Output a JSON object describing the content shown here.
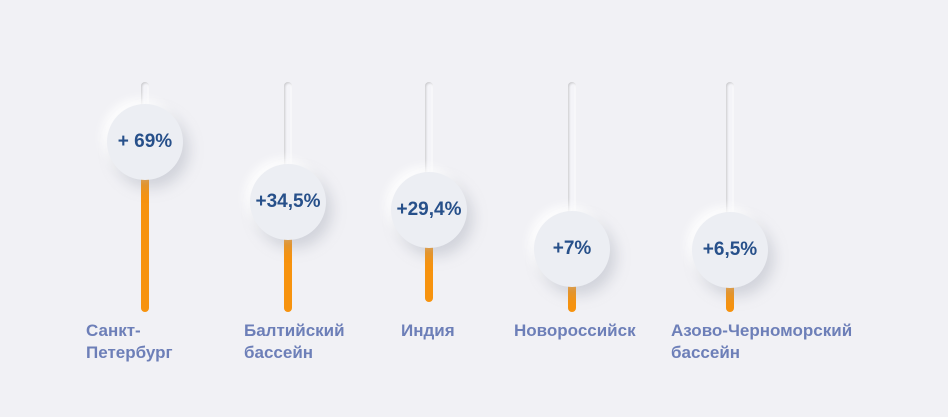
{
  "chart_data": {
    "type": "bar",
    "categories": [
      "Санкт-\nПетербург",
      "Балтийский\nбассейн",
      "Индия",
      "Новороссийск",
      "Азово-Черноморский\nбассейн"
    ],
    "values": [
      69,
      34.5,
      29.4,
      7,
      6.5
    ],
    "data_labels": [
      "+ 69%",
      "+34,5%",
      "+29,4%",
      "+7%",
      "+6,5%"
    ],
    "unit": "%",
    "colors": {
      "fill": "#f7930e",
      "label": "#27508a",
      "category": "#6d7fb8",
      "background": "#f1f1f5"
    }
  }
}
